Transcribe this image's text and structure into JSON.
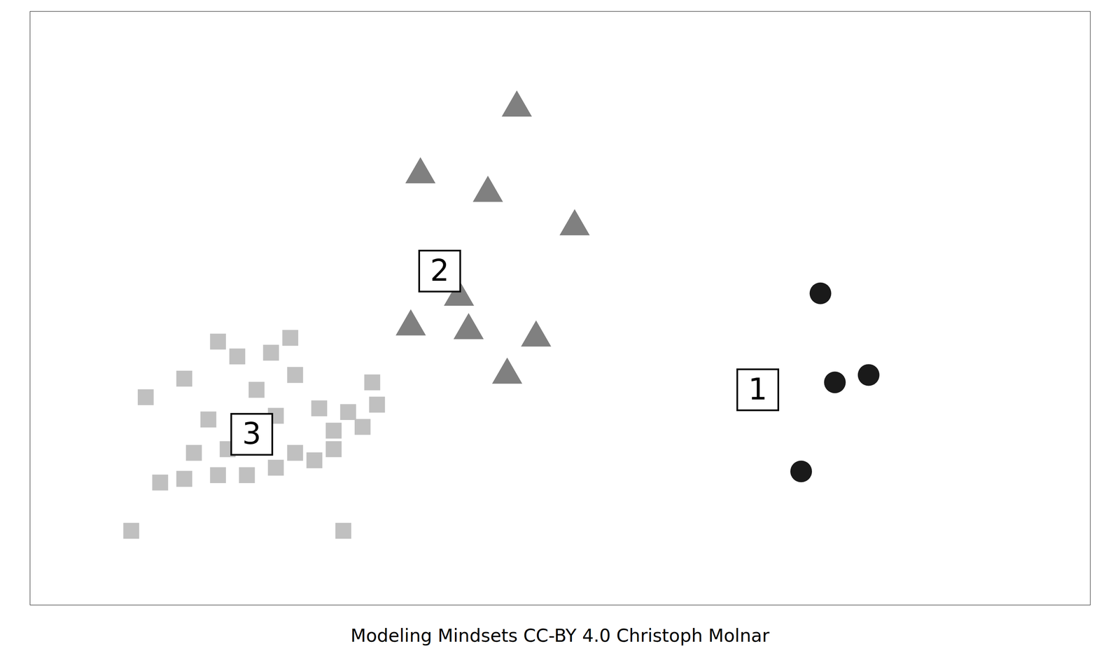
{
  "chart_data": {
    "type": "scatter",
    "title": "Modeling Mindsets CC-BY 4.0 Christoph Molnar",
    "xlim": [
      0.5,
      11.5
    ],
    "ylim": [
      3.0,
      11.0
    ],
    "tick_labels": false,
    "grid": false,
    "series": [
      {
        "color": "#c0c0c0",
        "marker": "square",
        "x": [
          1.7,
          2.45,
          2.1,
          2.65,
          3.0,
          3.2,
          2.85,
          3.25,
          2.35,
          2.75,
          3.05,
          3.5,
          2.2,
          2.55,
          2.9,
          3.25,
          3.65,
          3.8,
          1.85,
          2.1,
          2.45,
          2.75,
          3.05,
          3.45,
          3.65,
          3.95,
          4.1,
          4.05,
          1.55,
          3.75
        ],
        "y": [
          5.8,
          6.55,
          6.05,
          6.35,
          6.4,
          6.6,
          5.9,
          6.1,
          5.5,
          5.45,
          5.55,
          5.65,
          5.05,
          5.1,
          5.15,
          5.05,
          5.35,
          5.6,
          4.65,
          4.7,
          4.75,
          4.75,
          4.85,
          4.95,
          5.1,
          5.4,
          5.7,
          6.0,
          4.0,
          4.0
        ]
      },
      {
        "color": "#808080",
        "marker": "triangle",
        "x": [
          5.55,
          4.55,
          5.25,
          6.15,
          4.95,
          4.45,
          5.05,
          5.45,
          5.75
        ],
        "y": [
          9.7,
          8.8,
          8.55,
          8.1,
          7.15,
          6.75,
          6.7,
          6.1,
          6.6
        ]
      },
      {
        "color": "#1a1a1a",
        "marker": "circle",
        "x": [
          8.7,
          9.2,
          8.85,
          8.5
        ],
        "y": [
          7.2,
          6.1,
          6.0,
          4.8
        ]
      }
    ],
    "annotations": [
      {
        "text": "1",
        "x": 8.05,
        "y": 5.9
      },
      {
        "text": "2",
        "x": 4.75,
        "y": 7.5
      },
      {
        "text": "3",
        "x": 2.8,
        "y": 5.3
      }
    ]
  }
}
